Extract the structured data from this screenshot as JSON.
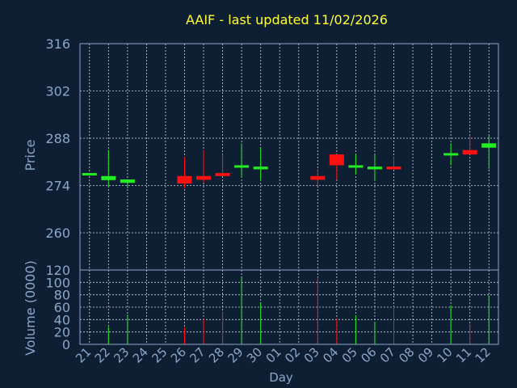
{
  "chart_data": {
    "type": "candlestick",
    "title": "AAIF - last updated 11/02/2026",
    "xlabel": "Day",
    "ylabel_price": "Price",
    "ylabel_volume": "Volume (0000)",
    "x_tick_labels": [
      "21",
      "22",
      "23",
      "24",
      "25",
      "26",
      "27",
      "28",
      "29",
      "30",
      "01",
      "02",
      "03",
      "04",
      "05",
      "06",
      "07",
      "08",
      "09",
      "10",
      "11",
      "12"
    ],
    "price_axis": {
      "ylim": [
        249,
        316
      ],
      "ticks": [
        316,
        302,
        288,
        274,
        260
      ]
    },
    "volume_axis": {
      "ylim": [
        0,
        120
      ],
      "ticks": [
        120,
        100,
        80,
        60,
        40,
        20,
        0
      ]
    },
    "grid": true,
    "candles": [
      {
        "x": 0,
        "open": 277.3,
        "close": 277.7,
        "high": 277.7,
        "low": 277.3,
        "volume": 0
      },
      {
        "x": 1,
        "open": 275.6,
        "close": 276.8,
        "high": 284.5,
        "low": 273.8,
        "volume": 28
      },
      {
        "x": 2,
        "open": 274.8,
        "close": 275.8,
        "high": 275.8,
        "low": 273.2,
        "volume": 48
      },
      {
        "x": 5,
        "open": 276.8,
        "close": 274.6,
        "high": 282.4,
        "low": 273.2,
        "volume": 27
      },
      {
        "x": 6,
        "open": 276.8,
        "close": 275.7,
        "high": 284.5,
        "low": 274.8,
        "volume": 41
      },
      {
        "x": 7,
        "open": 277.7,
        "close": 276.8,
        "high": 283.2,
        "low": 276.8,
        "volume": 53
      },
      {
        "x": 8,
        "open": 279.6,
        "close": 280.0,
        "high": 286.5,
        "low": 276.3,
        "volume": 110
      },
      {
        "x": 9,
        "open": 278.8,
        "close": 279.6,
        "high": 285.2,
        "low": 275.5,
        "volume": 68
      },
      {
        "x": 12,
        "open": 276.8,
        "close": 275.7,
        "high": 278.8,
        "low": 273.8,
        "volume": 108
      },
      {
        "x": 13,
        "open": 283.2,
        "close": 280.0,
        "high": 283.2,
        "low": 275.7,
        "volume": 42
      },
      {
        "x": 14,
        "open": 279.6,
        "close": 280.0,
        "high": 283.2,
        "low": 277.3,
        "volume": 47
      },
      {
        "x": 15,
        "open": 278.8,
        "close": 279.6,
        "high": 283.2,
        "low": 275.5,
        "volume": 36
      },
      {
        "x": 16,
        "open": 279.6,
        "close": 278.8,
        "high": 282.4,
        "low": 278.8,
        "volume": 61
      },
      {
        "x": 19,
        "open": 283.6,
        "close": 283.6,
        "high": 286.5,
        "low": 280.0,
        "volume": 63
      },
      {
        "x": 20,
        "open": 284.5,
        "close": 283.2,
        "high": 288.8,
        "low": 283.2,
        "volume": 33
      },
      {
        "x": 21,
        "open": 285.2,
        "close": 286.5,
        "high": 288.8,
        "low": 278.8,
        "volume": 79
      }
    ],
    "colors": {
      "background": "#0f1f33",
      "frame": "#8aa6c8",
      "grid": "#c8d4e2",
      "text": "#8aa6c8",
      "title": "#ffff33",
      "up": "#22ee22",
      "down": "#ff1111"
    }
  }
}
